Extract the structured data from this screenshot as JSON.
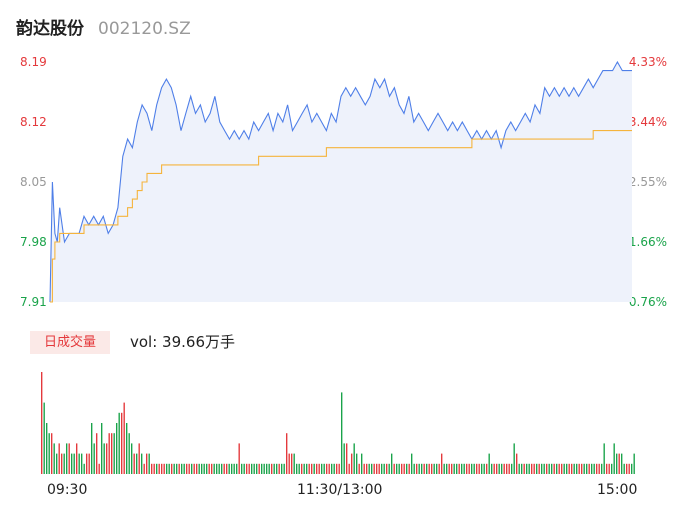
{
  "header": {
    "stock_name": "韵达股份",
    "stock_code": "002120.SZ"
  },
  "colors": {
    "up": "#e4393c",
    "down": "#1aa34a",
    "flat": "#999999",
    "price_line": "#4f7fe8",
    "avg_line": "#f5b43c",
    "area_fill": "#eef2fb"
  },
  "price_axis": {
    "left_ticks": [
      {
        "label": "8.19",
        "tone": "up"
      },
      {
        "label": "8.12",
        "tone": "up"
      },
      {
        "label": "8.05",
        "tone": "flat"
      },
      {
        "label": "7.98",
        "tone": "down"
      },
      {
        "label": "7.91",
        "tone": "down"
      }
    ],
    "right_ticks": [
      {
        "label": "4.33%",
        "tone": "up"
      },
      {
        "label": "3.44%",
        "tone": "up"
      },
      {
        "label": "2.55%",
        "tone": "flat"
      },
      {
        "label": "1.66%",
        "tone": "down"
      },
      {
        "label": "0.76%",
        "tone": "down"
      }
    ]
  },
  "volume_panel": {
    "badge": "日成交量",
    "summary": "vol: 39.66万手"
  },
  "time_axis": {
    "start": "09:30",
    "mid": "11:30/13:00",
    "end": "15:00"
  },
  "chart_data": {
    "type": "line",
    "ylim": [
      7.91,
      8.19
    ],
    "x_range_minutes": [
      0,
      240
    ],
    "series": [
      {
        "role": "price",
        "points": [
          [
            0,
            7.91
          ],
          [
            1,
            8.05
          ],
          [
            2,
            7.99
          ],
          [
            3,
            7.98
          ],
          [
            4,
            8.02
          ],
          [
            5,
            8.0
          ],
          [
            6,
            7.98
          ],
          [
            8,
            7.99
          ],
          [
            10,
            7.99
          ],
          [
            12,
            7.99
          ],
          [
            14,
            8.01
          ],
          [
            16,
            8.0
          ],
          [
            18,
            8.01
          ],
          [
            20,
            8.0
          ],
          [
            22,
            8.01
          ],
          [
            24,
            7.99
          ],
          [
            26,
            8.0
          ],
          [
            28,
            8.02
          ],
          [
            30,
            8.08
          ],
          [
            32,
            8.1
          ],
          [
            34,
            8.09
          ],
          [
            36,
            8.12
          ],
          [
            38,
            8.14
          ],
          [
            40,
            8.13
          ],
          [
            42,
            8.11
          ],
          [
            44,
            8.14
          ],
          [
            46,
            8.16
          ],
          [
            48,
            8.17
          ],
          [
            50,
            8.16
          ],
          [
            52,
            8.14
          ],
          [
            54,
            8.11
          ],
          [
            56,
            8.13
          ],
          [
            58,
            8.15
          ],
          [
            60,
            8.13
          ],
          [
            62,
            8.14
          ],
          [
            64,
            8.12
          ],
          [
            66,
            8.13
          ],
          [
            68,
            8.15
          ],
          [
            70,
            8.12
          ],
          [
            72,
            8.11
          ],
          [
            74,
            8.1
          ],
          [
            76,
            8.11
          ],
          [
            78,
            8.1
          ],
          [
            80,
            8.11
          ],
          [
            82,
            8.1
          ],
          [
            84,
            8.12
          ],
          [
            86,
            8.11
          ],
          [
            88,
            8.12
          ],
          [
            90,
            8.13
          ],
          [
            92,
            8.11
          ],
          [
            94,
            8.13
          ],
          [
            96,
            8.12
          ],
          [
            98,
            8.14
          ],
          [
            100,
            8.11
          ],
          [
            102,
            8.12
          ],
          [
            104,
            8.13
          ],
          [
            106,
            8.14
          ],
          [
            108,
            8.12
          ],
          [
            110,
            8.13
          ],
          [
            112,
            8.12
          ],
          [
            114,
            8.11
          ],
          [
            116,
            8.13
          ],
          [
            118,
            8.12
          ],
          [
            120,
            8.15
          ],
          [
            122,
            8.16
          ],
          [
            124,
            8.15
          ],
          [
            126,
            8.16
          ],
          [
            128,
            8.15
          ],
          [
            130,
            8.14
          ],
          [
            132,
            8.15
          ],
          [
            134,
            8.17
          ],
          [
            136,
            8.16
          ],
          [
            138,
            8.17
          ],
          [
            140,
            8.15
          ],
          [
            142,
            8.16
          ],
          [
            144,
            8.14
          ],
          [
            146,
            8.13
          ],
          [
            148,
            8.15
          ],
          [
            150,
            8.12
          ],
          [
            152,
            8.13
          ],
          [
            154,
            8.12
          ],
          [
            156,
            8.11
          ],
          [
            158,
            8.12
          ],
          [
            160,
            8.13
          ],
          [
            162,
            8.12
          ],
          [
            164,
            8.11
          ],
          [
            166,
            8.12
          ],
          [
            168,
            8.11
          ],
          [
            170,
            8.12
          ],
          [
            172,
            8.11
          ],
          [
            174,
            8.1
          ],
          [
            176,
            8.11
          ],
          [
            178,
            8.1
          ],
          [
            180,
            8.11
          ],
          [
            182,
            8.1
          ],
          [
            184,
            8.11
          ],
          [
            186,
            8.09
          ],
          [
            188,
            8.11
          ],
          [
            190,
            8.12
          ],
          [
            192,
            8.11
          ],
          [
            194,
            8.12
          ],
          [
            196,
            8.13
          ],
          [
            198,
            8.12
          ],
          [
            200,
            8.14
          ],
          [
            202,
            8.13
          ],
          [
            204,
            8.16
          ],
          [
            206,
            8.15
          ],
          [
            208,
            8.16
          ],
          [
            210,
            8.15
          ],
          [
            212,
            8.16
          ],
          [
            214,
            8.15
          ],
          [
            216,
            8.16
          ],
          [
            218,
            8.15
          ],
          [
            220,
            8.16
          ],
          [
            222,
            8.17
          ],
          [
            224,
            8.16
          ],
          [
            226,
            8.17
          ],
          [
            228,
            8.18
          ],
          [
            230,
            8.18
          ],
          [
            232,
            8.18
          ],
          [
            234,
            8.19
          ],
          [
            236,
            8.18
          ],
          [
            238,
            8.18
          ],
          [
            240,
            8.18
          ]
        ]
      },
      {
        "role": "average",
        "points": [
          [
            0,
            7.91
          ],
          [
            1,
            7.96
          ],
          [
            2,
            7.98
          ],
          [
            4,
            7.99
          ],
          [
            6,
            7.99
          ],
          [
            10,
            7.99
          ],
          [
            14,
            8.0
          ],
          [
            18,
            8.0
          ],
          [
            24,
            8.0
          ],
          [
            28,
            8.01
          ],
          [
            30,
            8.01
          ],
          [
            32,
            8.02
          ],
          [
            34,
            8.03
          ],
          [
            36,
            8.04
          ],
          [
            38,
            8.05
          ],
          [
            40,
            8.06
          ],
          [
            44,
            8.06
          ],
          [
            46,
            8.07
          ],
          [
            52,
            8.07
          ],
          [
            60,
            8.07
          ],
          [
            70,
            8.07
          ],
          [
            80,
            8.07
          ],
          [
            86,
            8.08
          ],
          [
            100,
            8.08
          ],
          [
            110,
            8.08
          ],
          [
            114,
            8.09
          ],
          [
            120,
            8.09
          ],
          [
            130,
            8.09
          ],
          [
            140,
            8.09
          ],
          [
            150,
            8.09
          ],
          [
            160,
            8.09
          ],
          [
            170,
            8.09
          ],
          [
            174,
            8.1
          ],
          [
            180,
            8.1
          ],
          [
            190,
            8.1
          ],
          [
            200,
            8.1
          ],
          [
            210,
            8.1
          ],
          [
            220,
            8.1
          ],
          [
            224,
            8.11
          ],
          [
            230,
            8.11
          ],
          [
            240,
            8.11
          ]
        ]
      }
    ],
    "volume": {
      "values": [
        10,
        7,
        5,
        4,
        4,
        3,
        2,
        3,
        2,
        2,
        3,
        3,
        2,
        2,
        3,
        2,
        2,
        1,
        2,
        2,
        5,
        3,
        4,
        1,
        5,
        3,
        3,
        4,
        4,
        4,
        5,
        6,
        6,
        7,
        5,
        4,
        3,
        2,
        2,
        3,
        2,
        1,
        2,
        2,
        1,
        1,
        1,
        1,
        1,
        1,
        1,
        1,
        1,
        1,
        1,
        1,
        1,
        1,
        1,
        1,
        1,
        1,
        1,
        1,
        1,
        1,
        1,
        1,
        1,
        1,
        1,
        1,
        1,
        1,
        1,
        1,
        1,
        1,
        1,
        3,
        1,
        1,
        1,
        1,
        1,
        1,
        1,
        1,
        1,
        1,
        1,
        1,
        1,
        1,
        1,
        1,
        1,
        1,
        4,
        2,
        2,
        2,
        1,
        1,
        1,
        1,
        1,
        1,
        1,
        1,
        1,
        1,
        1,
        1,
        1,
        1,
        1,
        1,
        1,
        1,
        8,
        3,
        3,
        1,
        2,
        3,
        2,
        1,
        2,
        1,
        1,
        1,
        1,
        1,
        1,
        1,
        1,
        1,
        1,
        1,
        2,
        1,
        1,
        1,
        1,
        1,
        1,
        1,
        2,
        1,
        1,
        1,
        1,
        1,
        1,
        1,
        1,
        1,
        1,
        1,
        2,
        1,
        1,
        1,
        1,
        1,
        1,
        1,
        1,
        1,
        1,
        1,
        1,
        1,
        1,
        1,
        1,
        1,
        1,
        2,
        1,
        1,
        1,
        1,
        1,
        1,
        1,
        1,
        1,
        3,
        2,
        1,
        1,
        1,
        1,
        1,
        1,
        1,
        1,
        1,
        1,
        1,
        1,
        1,
        1,
        1,
        1,
        1,
        1,
        1,
        1,
        1,
        1,
        1,
        1,
        1,
        1,
        1,
        1,
        1,
        1,
        1,
        1,
        1,
        1,
        3,
        1,
        1,
        1,
        3,
        2,
        2,
        2,
        1,
        1,
        1,
        1,
        2
      ],
      "directions": "udddudduuddudduddduudduudduuuddduudddududuuduuduuudduddudduuduudddduudddduuddddudduudddudddduddudduuudddudduuduudduudduudduuudduduudduuudduddudduududdudduduudduudduuddudduudduuddudduudduuudduddudduududdudduduudduudduuddudduuddu"
    }
  }
}
